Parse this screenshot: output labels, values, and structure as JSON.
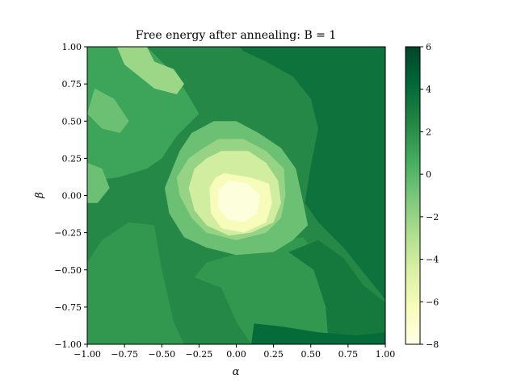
{
  "chart_data": {
    "type": "heatmap",
    "title": "Free energy after annealing: B = 1",
    "xlabel": "α",
    "ylabel": "β",
    "xlim": [
      -1.0,
      1.0
    ],
    "ylim": [
      -1.0,
      1.0
    ],
    "x_ticks": [
      "−1.00",
      "−0.75",
      "−0.50",
      "−0.25",
      "0.00",
      "0.25",
      "0.50",
      "0.75",
      "1.00"
    ],
    "y_ticks": [
      "−1.00",
      "−0.75",
      "−0.50",
      "−0.25",
      "0.00",
      "0.25",
      "0.50",
      "0.75",
      "1.00"
    ],
    "colorbar": {
      "min": -8,
      "max": 6,
      "ticks": [
        "6",
        "4",
        "2",
        "0",
        "−2",
        "−4",
        "−6",
        "−8"
      ],
      "colormap": "YlGn",
      "colors": [
        "#ffffe5",
        "#f7fcb9",
        "#d9f0a3",
        "#addd8e",
        "#78c679",
        "#41ab5d",
        "#238443",
        "#006837",
        "#004529"
      ]
    },
    "grid": false,
    "regions": [
      {
        "name": "background",
        "value": 2.3
      },
      {
        "name": "upper-right",
        "value": 3.6
      },
      {
        "name": "lower-arc",
        "value": 1.6
      },
      {
        "name": "dark-band",
        "value": 3.2
      },
      {
        "name": "top-left-mottled",
        "value": 1.0
      },
      {
        "name": "top-left-bright",
        "value": -2.2
      },
      {
        "name": "basin-outer",
        "value": -0.6
      },
      {
        "name": "basin-ring",
        "value": -2.0
      },
      {
        "name": "basin-mid",
        "value": -4.2
      },
      {
        "name": "basin-inner",
        "value": -6.3
      },
      {
        "name": "basin-core",
        "value": -7.6
      },
      {
        "name": "bottom-dark",
        "value": 4.0
      }
    ]
  }
}
